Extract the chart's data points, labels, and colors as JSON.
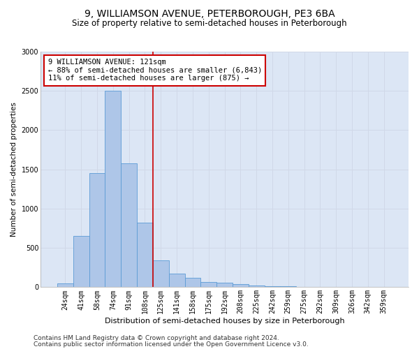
{
  "title": "9, WILLIAMSON AVENUE, PETERBOROUGH, PE3 6BA",
  "subtitle": "Size of property relative to semi-detached houses in Peterborough",
  "xlabel": "Distribution of semi-detached houses by size in Peterborough",
  "ylabel": "Number of semi-detached properties",
  "categories": [
    "24sqm",
    "41sqm",
    "58sqm",
    "74sqm",
    "91sqm",
    "108sqm",
    "125sqm",
    "141sqm",
    "158sqm",
    "175sqm",
    "192sqm",
    "208sqm",
    "225sqm",
    "242sqm",
    "259sqm",
    "275sqm",
    "292sqm",
    "309sqm",
    "326sqm",
    "342sqm",
    "359sqm"
  ],
  "values": [
    50,
    650,
    1450,
    2500,
    1580,
    820,
    340,
    170,
    120,
    70,
    60,
    40,
    20,
    15,
    10,
    8,
    5,
    5,
    5,
    3,
    3
  ],
  "bar_color": "#aec6e8",
  "bar_edge_color": "#5b9bd5",
  "vline_index": 5.5,
  "annotation_text_line1": "9 WILLIAMSON AVENUE: 121sqm",
  "annotation_text_line2": "← 88% of semi-detached houses are smaller (6,843)",
  "annotation_text_line3": "11% of semi-detached houses are larger (875) →",
  "annotation_box_color": "#ffffff",
  "annotation_box_edge_color": "#cc0000",
  "vline_color": "#cc0000",
  "ylim": [
    0,
    3000
  ],
  "yticks": [
    0,
    500,
    1000,
    1500,
    2000,
    2500,
    3000
  ],
  "grid_color": "#d0d8e8",
  "background_color": "#dce6f5",
  "footer_line1": "Contains HM Land Registry data © Crown copyright and database right 2024.",
  "footer_line2": "Contains public sector information licensed under the Open Government Licence v3.0.",
  "title_fontsize": 10,
  "subtitle_fontsize": 8.5,
  "xlabel_fontsize": 8,
  "ylabel_fontsize": 7.5,
  "tick_fontsize": 7,
  "annotation_fontsize": 7.5,
  "footer_fontsize": 6.5
}
